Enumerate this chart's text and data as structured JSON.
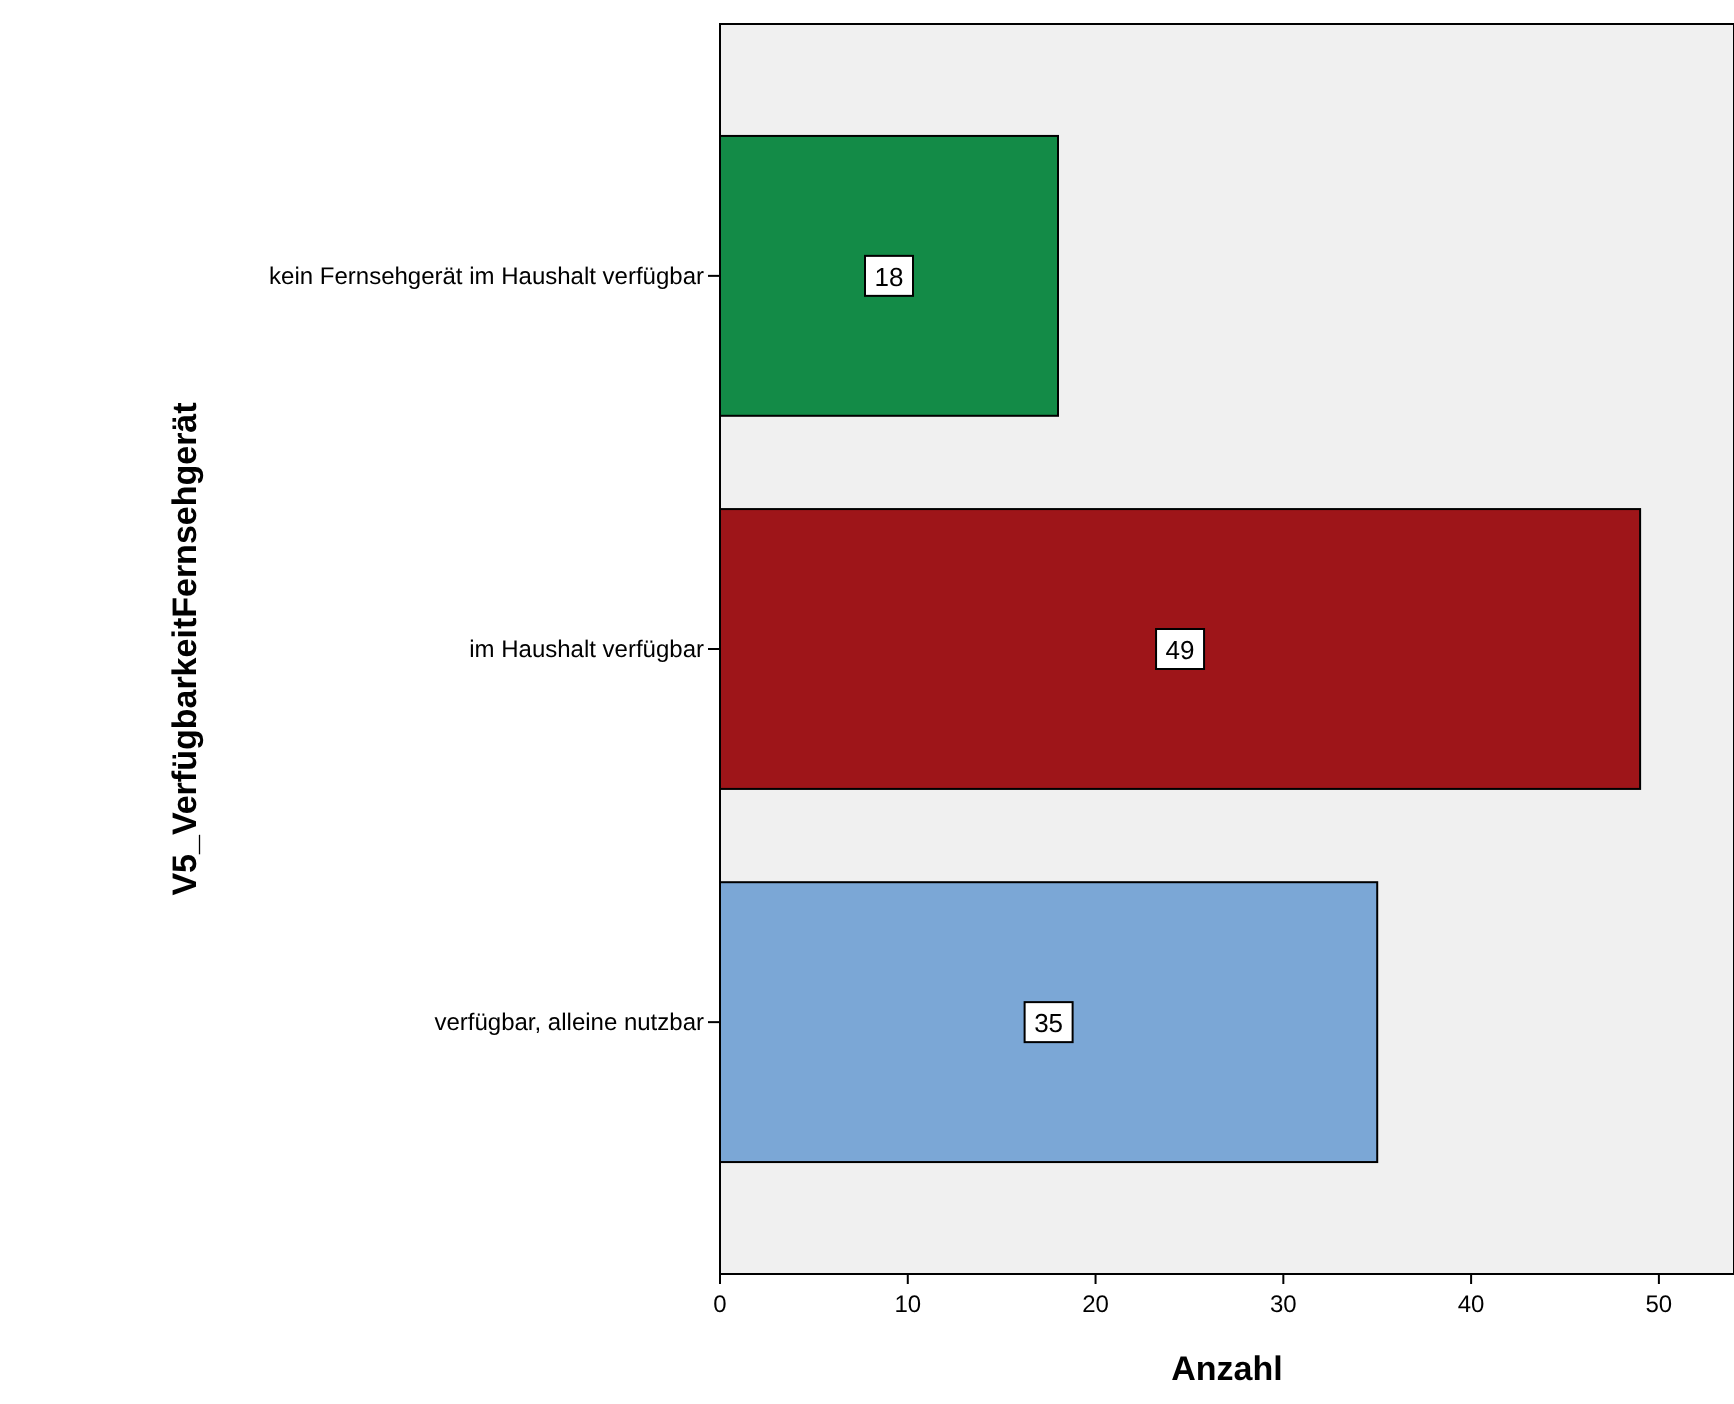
{
  "chart_data": {
    "type": "bar",
    "orientation": "horizontal",
    "xlabel": "Anzahl",
    "ylabel": "V5_VerfügbarkeitFernsehgerät",
    "categories": [
      "kein Fernsehgerät im Haushalt verfügbar",
      "im Haushalt verfügbar",
      "verfügbar, alleine nutzbar"
    ],
    "values": [
      18,
      49,
      35
    ],
    "colors": [
      "#138b47",
      "#9e1519",
      "#7ba7d6"
    ],
    "xlim": [
      0,
      54
    ],
    "xticks": [
      0,
      10,
      20,
      30,
      40,
      50
    ],
    "data_labels": true
  }
}
